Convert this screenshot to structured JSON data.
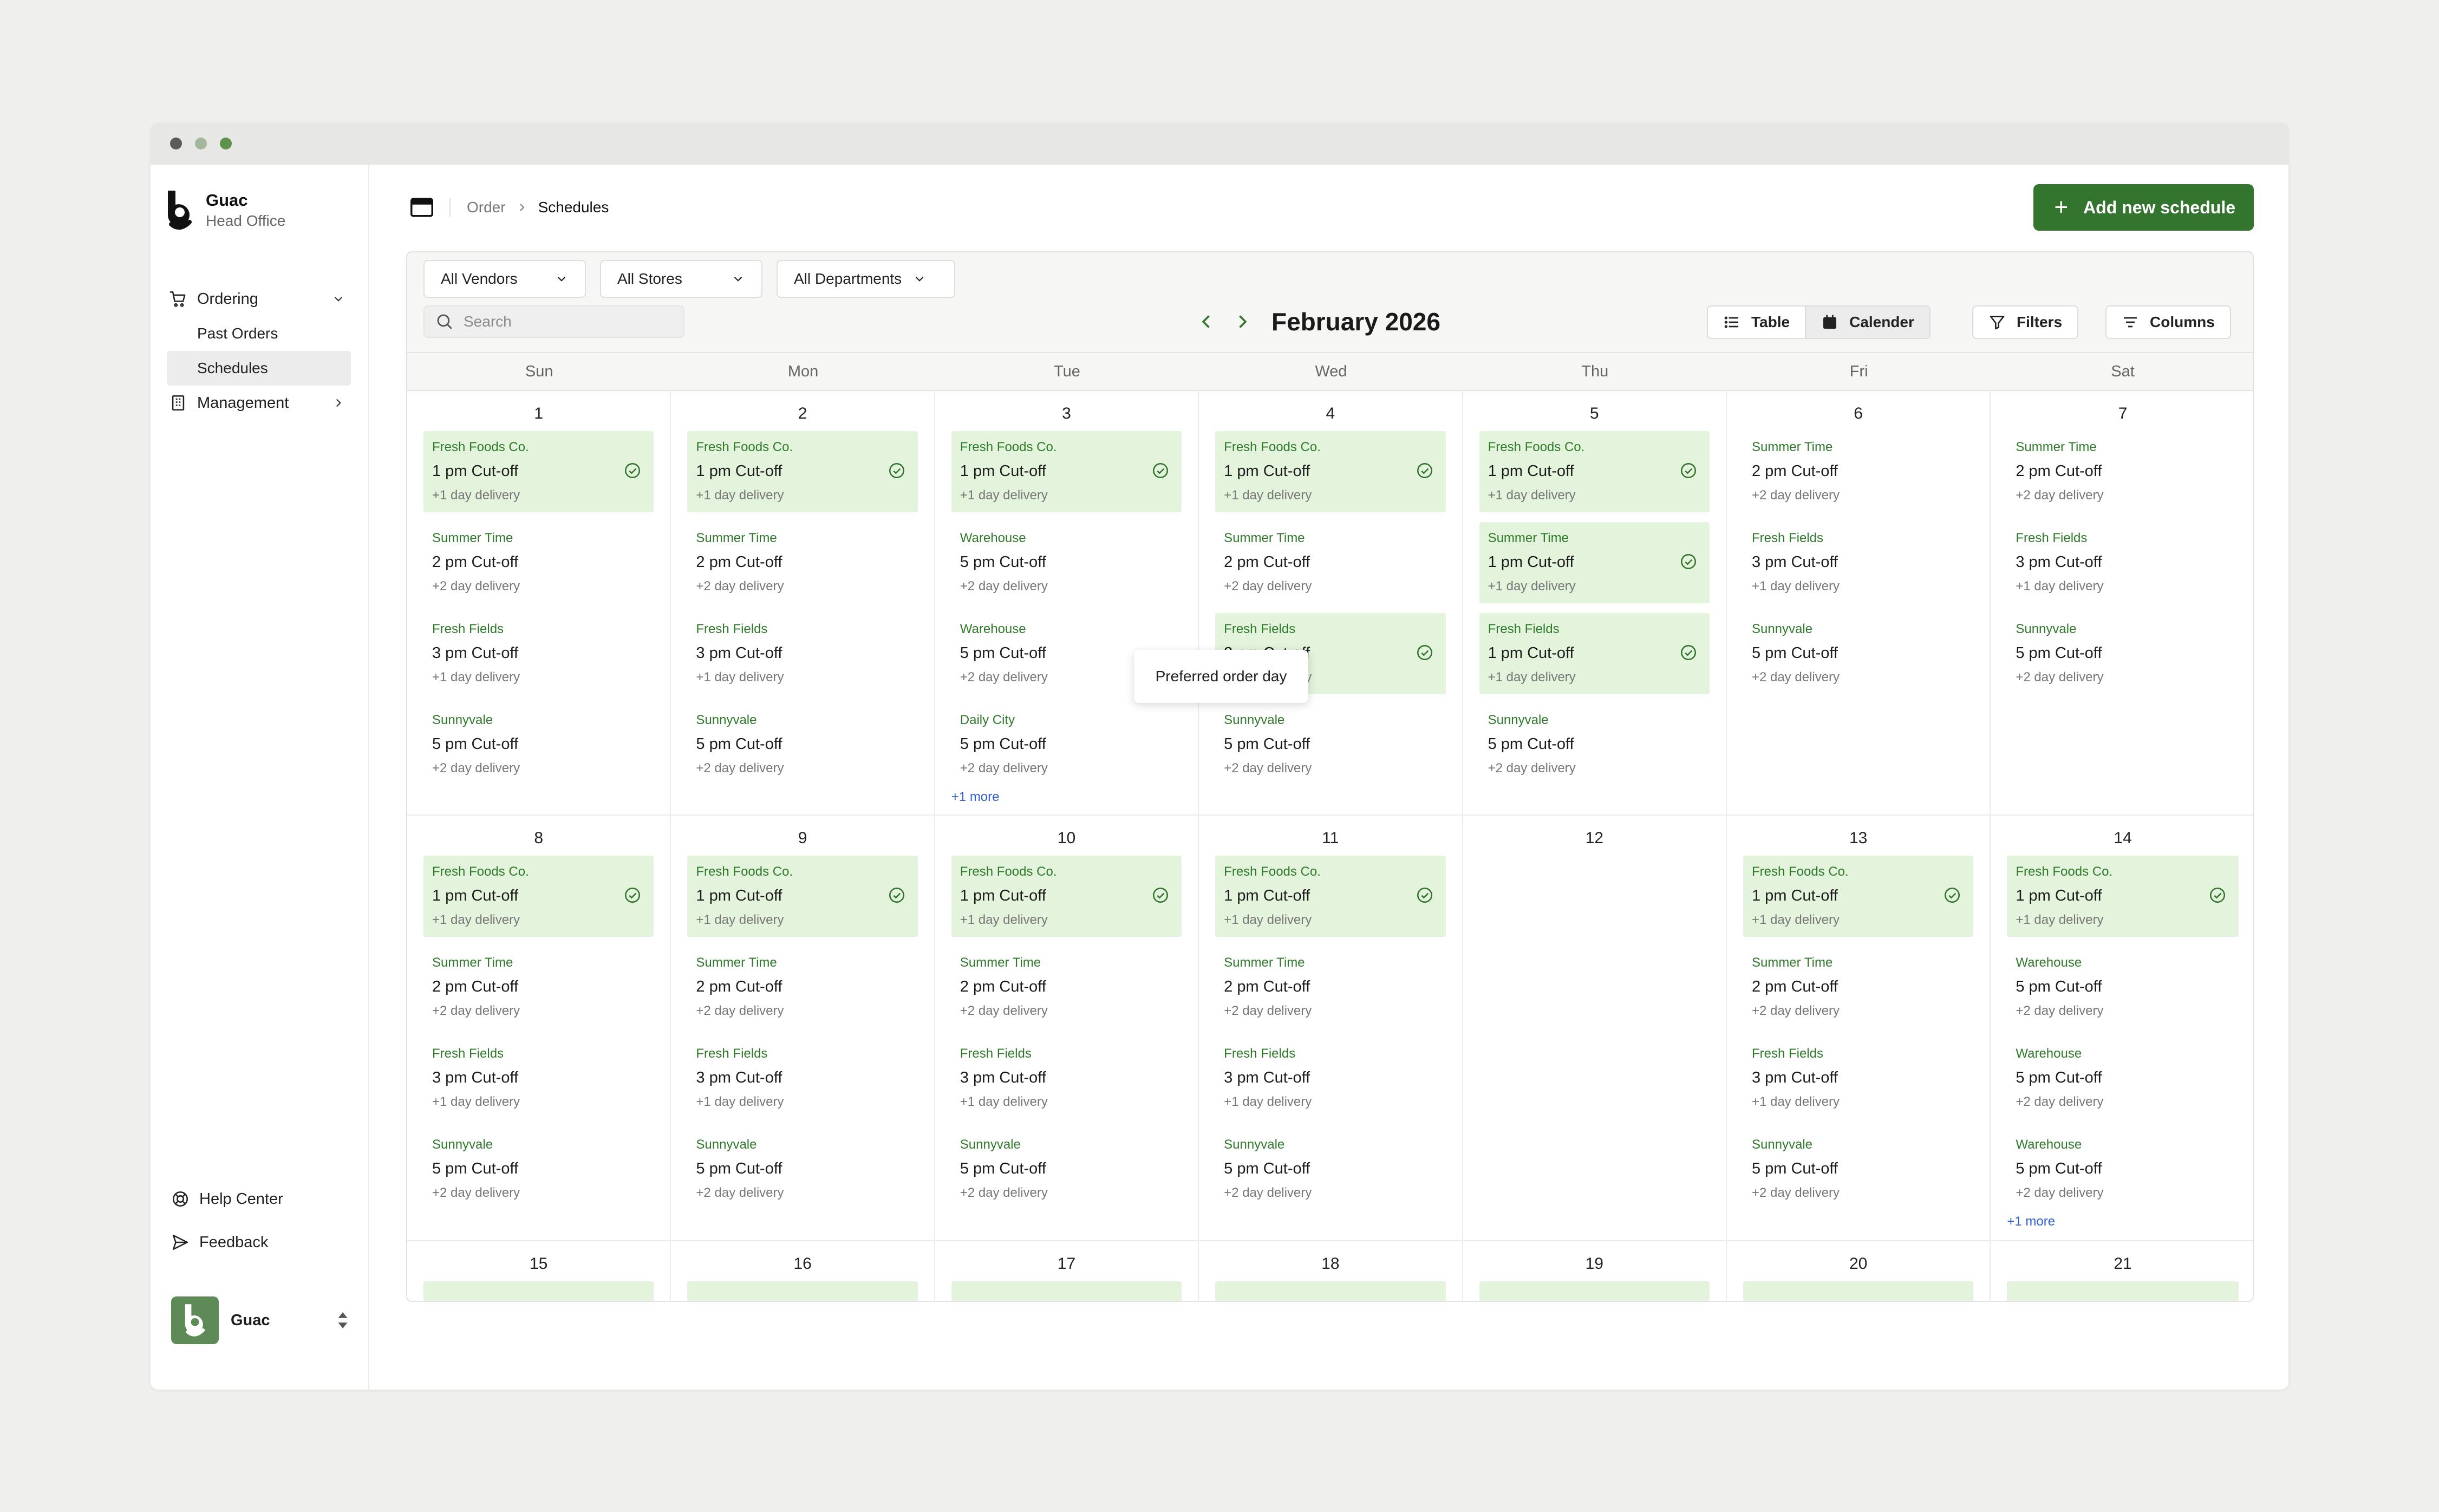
{
  "window": {
    "dots": [
      "#5b5b5b",
      "#a3b89b",
      "#5e9150"
    ]
  },
  "brand": {
    "name": "Guac",
    "sub": "Head Office"
  },
  "nav": {
    "ordering": "Ordering",
    "past_orders": "Past Orders",
    "schedules": "Schedules",
    "management": "Management",
    "help": "Help Center",
    "feedback": "Feedback"
  },
  "user": {
    "name": "Guac"
  },
  "breadcrumb": {
    "order": "Order",
    "current": "Schedules"
  },
  "actions": {
    "add": "Add new schedule"
  },
  "filters": {
    "vendors": "All Vendors",
    "stores": "All Stores",
    "departments": "All Departments"
  },
  "search": {
    "placeholder": "Search",
    "value": ""
  },
  "calendar_nav": {
    "month": "February 2026"
  },
  "views": {
    "table": "Table",
    "calendar": "Calender",
    "filters": "Filters",
    "columns": "Columns"
  },
  "tooltip": "Preferred order day",
  "colors": {
    "accent": "#33752e",
    "preferred_bg": "#e3f3dc",
    "vendor_text": "#2f7a2a",
    "more_link": "#2f5fd0"
  },
  "weekdays": [
    "Sun",
    "Mon",
    "Tue",
    "Wed",
    "Thu",
    "Fri",
    "Sat"
  ],
  "weeks": [
    [
      {
        "day": "1",
        "events": [
          {
            "vendor": "Fresh Foods Co.",
            "cutoff": "1 pm Cut-off",
            "delivery": "+1 day delivery",
            "preferred": true
          },
          {
            "vendor": "Summer Time",
            "cutoff": "2 pm Cut-off",
            "delivery": "+2 day delivery",
            "preferred": false
          },
          {
            "vendor": "Fresh Fields",
            "cutoff": "3 pm Cut-off",
            "delivery": "+1 day delivery",
            "preferred": false
          },
          {
            "vendor": "Sunnyvale",
            "cutoff": "5 pm Cut-off",
            "delivery": "+2 day delivery",
            "preferred": false
          }
        ]
      },
      {
        "day": "2",
        "events": [
          {
            "vendor": "Fresh Foods Co.",
            "cutoff": "1 pm Cut-off",
            "delivery": "+1 day delivery",
            "preferred": true
          },
          {
            "vendor": "Summer Time",
            "cutoff": "2 pm Cut-off",
            "delivery": "+2 day delivery",
            "preferred": false
          },
          {
            "vendor": "Fresh Fields",
            "cutoff": "3 pm Cut-off",
            "delivery": "+1 day delivery",
            "preferred": false
          },
          {
            "vendor": "Sunnyvale",
            "cutoff": "5 pm Cut-off",
            "delivery": "+2 day delivery",
            "preferred": false
          }
        ]
      },
      {
        "day": "3",
        "more": "+1 more",
        "events": [
          {
            "vendor": "Fresh Foods Co.",
            "cutoff": "1 pm Cut-off",
            "delivery": "+1 day delivery",
            "preferred": true
          },
          {
            "vendor": "Warehouse",
            "cutoff": "5 pm Cut-off",
            "delivery": "+2 day delivery",
            "preferred": false
          },
          {
            "vendor": "Warehouse",
            "cutoff": "5 pm Cut-off",
            "delivery": "+2 day delivery",
            "preferred": false
          },
          {
            "vendor": "Daily City",
            "cutoff": "5 pm Cut-off",
            "delivery": "+2 day delivery",
            "preferred": false
          }
        ]
      },
      {
        "day": "4",
        "events": [
          {
            "vendor": "Fresh Foods Co.",
            "cutoff": "1 pm Cut-off",
            "delivery": "+1 day delivery",
            "preferred": true
          },
          {
            "vendor": "Summer Time",
            "cutoff": "2 pm Cut-off",
            "delivery": "+2 day delivery",
            "preferred": false
          },
          {
            "vendor": "Fresh Fields",
            "cutoff": "3 pm Cut-off",
            "delivery": "+1 day delivery",
            "preferred": true
          },
          {
            "vendor": "Sunnyvale",
            "cutoff": "5 pm Cut-off",
            "delivery": "+2 day delivery",
            "preferred": false
          }
        ]
      },
      {
        "day": "5",
        "events": [
          {
            "vendor": "Fresh Foods Co.",
            "cutoff": "1 pm Cut-off",
            "delivery": "+1 day delivery",
            "preferred": true
          },
          {
            "vendor": "Summer Time",
            "cutoff": "1 pm Cut-off",
            "delivery": "+1 day delivery",
            "preferred": true
          },
          {
            "vendor": "Fresh Fields",
            "cutoff": "1 pm Cut-off",
            "delivery": "+1 day delivery",
            "preferred": true
          },
          {
            "vendor": "Sunnyvale",
            "cutoff": "5 pm Cut-off",
            "delivery": "+2 day delivery",
            "preferred": false
          }
        ]
      },
      {
        "day": "6",
        "events": [
          {
            "vendor": "Summer Time",
            "cutoff": "2 pm Cut-off",
            "delivery": "+2 day delivery",
            "preferred": false
          },
          {
            "vendor": "Fresh Fields",
            "cutoff": "3 pm Cut-off",
            "delivery": "+1 day delivery",
            "preferred": false
          },
          {
            "vendor": "Sunnyvale",
            "cutoff": "5 pm Cut-off",
            "delivery": "+2 day delivery",
            "preferred": false
          }
        ]
      },
      {
        "day": "7",
        "events": [
          {
            "vendor": "Summer Time",
            "cutoff": "2 pm Cut-off",
            "delivery": "+2 day delivery",
            "preferred": false
          },
          {
            "vendor": "Fresh Fields",
            "cutoff": "3 pm Cut-off",
            "delivery": "+1 day delivery",
            "preferred": false
          },
          {
            "vendor": "Sunnyvale",
            "cutoff": "5 pm Cut-off",
            "delivery": "+2 day delivery",
            "preferred": false
          }
        ]
      }
    ],
    [
      {
        "day": "8",
        "events": [
          {
            "vendor": "Fresh Foods Co.",
            "cutoff": "1 pm Cut-off",
            "delivery": "+1 day delivery",
            "preferred": true
          },
          {
            "vendor": "Summer Time",
            "cutoff": "2 pm Cut-off",
            "delivery": "+2 day delivery",
            "preferred": false
          },
          {
            "vendor": "Fresh Fields",
            "cutoff": "3 pm Cut-off",
            "delivery": "+1 day delivery",
            "preferred": false
          },
          {
            "vendor": "Sunnyvale",
            "cutoff": "5 pm Cut-off",
            "delivery": "+2 day delivery",
            "preferred": false
          }
        ]
      },
      {
        "day": "9",
        "events": [
          {
            "vendor": "Fresh Foods Co.",
            "cutoff": "1 pm Cut-off",
            "delivery": "+1 day delivery",
            "preferred": true
          },
          {
            "vendor": "Summer Time",
            "cutoff": "2 pm Cut-off",
            "delivery": "+2 day delivery",
            "preferred": false
          },
          {
            "vendor": "Fresh Fields",
            "cutoff": "3 pm Cut-off",
            "delivery": "+1 day delivery",
            "preferred": false
          },
          {
            "vendor": "Sunnyvale",
            "cutoff": "5 pm Cut-off",
            "delivery": "+2 day delivery",
            "preferred": false
          }
        ]
      },
      {
        "day": "10",
        "events": [
          {
            "vendor": "Fresh Foods Co.",
            "cutoff": "1 pm Cut-off",
            "delivery": "+1 day delivery",
            "preferred": true
          },
          {
            "vendor": "Summer Time",
            "cutoff": "2 pm Cut-off",
            "delivery": "+2 day delivery",
            "preferred": false
          },
          {
            "vendor": "Fresh Fields",
            "cutoff": "3 pm Cut-off",
            "delivery": "+1 day delivery",
            "preferred": false
          },
          {
            "vendor": "Sunnyvale",
            "cutoff": "5 pm Cut-off",
            "delivery": "+2 day delivery",
            "preferred": false
          }
        ]
      },
      {
        "day": "11",
        "events": [
          {
            "vendor": "Fresh Foods Co.",
            "cutoff": "1 pm Cut-off",
            "delivery": "+1 day delivery",
            "preferred": true
          },
          {
            "vendor": "Summer Time",
            "cutoff": "2 pm Cut-off",
            "delivery": "+2 day delivery",
            "preferred": false
          },
          {
            "vendor": "Fresh Fields",
            "cutoff": "3 pm Cut-off",
            "delivery": "+1 day delivery",
            "preferred": false
          },
          {
            "vendor": "Sunnyvale",
            "cutoff": "5 pm Cut-off",
            "delivery": "+2 day delivery",
            "preferred": false
          }
        ]
      },
      {
        "day": "12",
        "events": []
      },
      {
        "day": "13",
        "events": [
          {
            "vendor": "Fresh Foods Co.",
            "cutoff": "1 pm Cut-off",
            "delivery": "+1 day delivery",
            "preferred": true
          },
          {
            "vendor": "Summer Time",
            "cutoff": "2 pm Cut-off",
            "delivery": "+2 day delivery",
            "preferred": false
          },
          {
            "vendor": "Fresh Fields",
            "cutoff": "3 pm Cut-off",
            "delivery": "+1 day delivery",
            "preferred": false
          },
          {
            "vendor": "Sunnyvale",
            "cutoff": "5 pm Cut-off",
            "delivery": "+2 day delivery",
            "preferred": false
          }
        ]
      },
      {
        "day": "14",
        "more": "+1 more",
        "events": [
          {
            "vendor": "Fresh Foods Co.",
            "cutoff": "1 pm Cut-off",
            "delivery": "+1 day delivery",
            "preferred": true
          },
          {
            "vendor": "Warehouse",
            "cutoff": "5 pm Cut-off",
            "delivery": "+2 day delivery",
            "preferred": false
          },
          {
            "vendor": "Warehouse",
            "cutoff": "5 pm Cut-off",
            "delivery": "+2 day delivery",
            "preferred": false
          },
          {
            "vendor": "Warehouse",
            "cutoff": "5 pm Cut-off",
            "delivery": "+2 day delivery",
            "preferred": false
          }
        ]
      }
    ],
    [
      {
        "day": "15",
        "events": [
          {
            "vendor": "",
            "cutoff": "",
            "delivery": "",
            "preferred": true
          }
        ]
      },
      {
        "day": "16",
        "events": [
          {
            "vendor": "",
            "cutoff": "",
            "delivery": "",
            "preferred": true
          }
        ]
      },
      {
        "day": "17",
        "events": [
          {
            "vendor": "",
            "cutoff": "",
            "delivery": "",
            "preferred": true
          }
        ]
      },
      {
        "day": "18",
        "events": [
          {
            "vendor": "",
            "cutoff": "",
            "delivery": "",
            "preferred": true
          }
        ]
      },
      {
        "day": "19",
        "events": [
          {
            "vendor": "",
            "cutoff": "",
            "delivery": "",
            "preferred": true
          }
        ]
      },
      {
        "day": "20",
        "events": [
          {
            "vendor": "",
            "cutoff": "",
            "delivery": "",
            "preferred": true
          }
        ]
      },
      {
        "day": "21",
        "events": [
          {
            "vendor": "",
            "cutoff": "",
            "delivery": "",
            "preferred": true
          }
        ]
      }
    ]
  ]
}
